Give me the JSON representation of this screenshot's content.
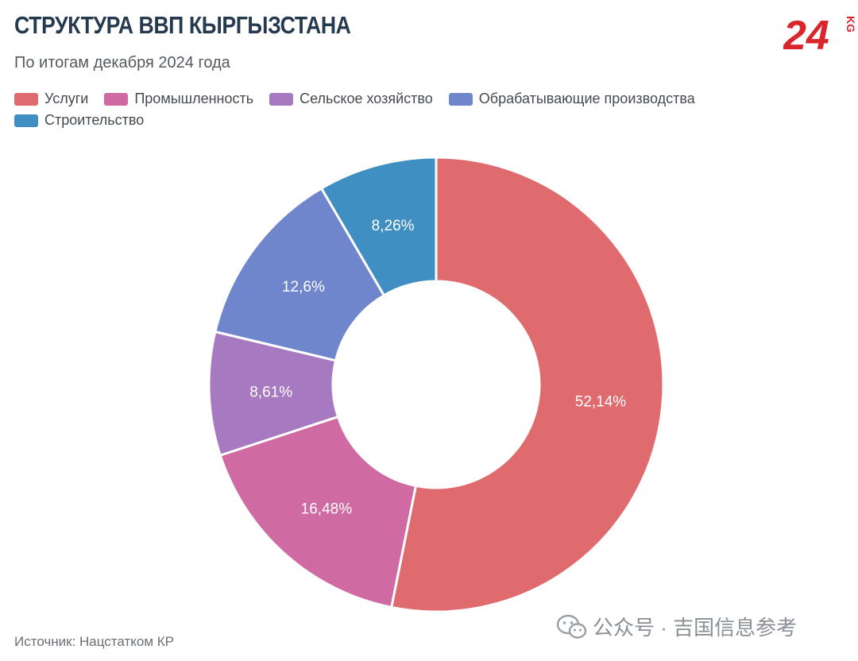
{
  "header": {
    "title": "СТРУКТУРА ВВП КЫРГЫЗСТАНА",
    "subtitle": "По итогам декабря 2024 года",
    "logo_text": "24",
    "logo_suffix": "KG"
  },
  "chart_data": {
    "type": "pie",
    "subtitle": "По итогам декабря 2024 года",
    "hole": "donut",
    "legend_placement": "top-left",
    "slices": [
      {
        "label": "Услуги",
        "value": 52.14,
        "value_label": "52,14%",
        "color": "#e06b6e"
      },
      {
        "label": "Промышленность",
        "value": 16.48,
        "value_label": "16,48%",
        "color": "#d06aa3"
      },
      {
        "label": "Сельское хозяйство",
        "value": 8.61,
        "value_label": "8,61%",
        "color": "#a679c0"
      },
      {
        "label": "Обрабатывающие производства",
        "value": 12.6,
        "value_label": "12,6%",
        "color": "#6f86cc"
      },
      {
        "label": "Строительство",
        "value": 8.26,
        "value_label": "8,26%",
        "color": "#3f8fc2"
      }
    ],
    "legend_order": [
      0,
      1,
      2,
      3,
      4
    ],
    "source": "Источник: Нацстатком КР"
  },
  "watermark": {
    "text": "公众号 · 吉国信息参考",
    "icon": "wechat-icon"
  },
  "colors": {
    "title": "#263a4f",
    "logo_red": "#d9262d"
  }
}
